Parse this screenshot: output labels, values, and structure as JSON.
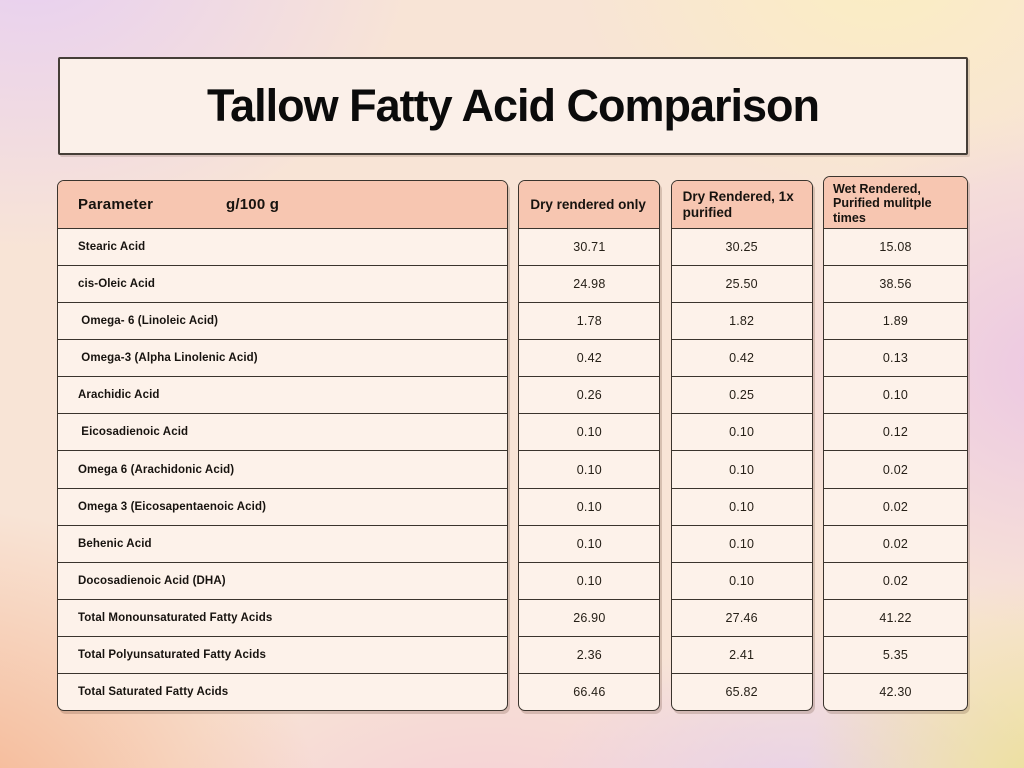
{
  "title": "Tallow Fatty Acid Comparison",
  "colors": {
    "header_fill": "#f7c6b1",
    "panel_fill": "#fdf2ea",
    "panel_border": "#3b342d",
    "title_text": "#0b0b0b",
    "bg_lavender": "#e7cff2",
    "bg_yellow": "#fbeec2",
    "bg_pink": "#f4ccd6",
    "bg_orange": "#f5b28c"
  },
  "table": {
    "param_header": "Parameter",
    "unit_header": "g/100 g",
    "columns": [
      "Dry rendered only",
      "Dry Rendered, 1x purified",
      "Wet Rendered, Purified mulitple times"
    ],
    "rows": [
      {
        "parameter": "Stearic Acid",
        "values": [
          "30.71",
          "30.25",
          "15.08"
        ]
      },
      {
        "parameter": "cis-Oleic Acid",
        "values": [
          "24.98",
          "25.50",
          "38.56"
        ]
      },
      {
        "parameter": " Omega- 6 (Linoleic Acid)",
        "values": [
          "1.78",
          "1.82",
          "1.89"
        ]
      },
      {
        "parameter": " Omega-3 (Alpha Linolenic Acid)",
        "values": [
          "0.42",
          "0.42",
          "0.13"
        ]
      },
      {
        "parameter": "Arachidic Acid",
        "values": [
          "0.26",
          "0.25",
          "0.10"
        ]
      },
      {
        "parameter": " Eicosadienoic Acid",
        "values": [
          "0.10",
          "0.10",
          "0.12"
        ]
      },
      {
        "parameter": "Omega 6 (Arachidonic Acid)",
        "values": [
          "0.10",
          "0.10",
          "0.02"
        ]
      },
      {
        "parameter": "Omega 3 (Eicosapentaenoic Acid)",
        "values": [
          "0.10",
          "0.10",
          "0.02"
        ]
      },
      {
        "parameter": "Behenic Acid",
        "values": [
          "0.10",
          "0.10",
          "0.02"
        ]
      },
      {
        "parameter": "Docosadienoic Acid (DHA)",
        "values": [
          "0.10",
          "0.10",
          "0.02"
        ]
      },
      {
        "parameter": "Total Monounsaturated Fatty Acids",
        "values": [
          "26.90",
          "27.46",
          "41.22"
        ]
      },
      {
        "parameter": "Total Polyunsaturated Fatty Acids",
        "values": [
          "2.36",
          "2.41",
          "5.35"
        ]
      },
      {
        "parameter": "Total Saturated Fatty Acids",
        "values": [
          "66.46",
          "65.82",
          "42.30"
        ]
      }
    ]
  },
  "chart_data": {
    "type": "table",
    "title": "Tallow Fatty Acid Comparison",
    "row_header": "Parameter (g/100 g)",
    "columns": [
      "Dry rendered only",
      "Dry Rendered, 1x purified",
      "Wet Rendered, Purified mulitple times"
    ],
    "categories": [
      "Stearic Acid",
      "cis-Oleic Acid",
      "Omega- 6 (Linoleic Acid)",
      "Omega-3 (Alpha Linolenic Acid)",
      "Arachidic Acid",
      "Eicosadienoic Acid",
      "Omega 6 (Arachidonic Acid)",
      "Omega 3 (Eicosapentaenoic Acid)",
      "Behenic Acid",
      "Docosadienoic Acid (DHA)",
      "Total Monounsaturated Fatty Acids",
      "Total Polyunsaturated Fatty Acids",
      "Total Saturated Fatty Acids"
    ],
    "series": [
      {
        "name": "Dry rendered only",
        "values": [
          30.71,
          24.98,
          1.78,
          0.42,
          0.26,
          0.1,
          0.1,
          0.1,
          0.1,
          0.1,
          26.9,
          2.36,
          66.46
        ]
      },
      {
        "name": "Dry Rendered, 1x purified",
        "values": [
          30.25,
          25.5,
          1.82,
          0.42,
          0.25,
          0.1,
          0.1,
          0.1,
          0.1,
          0.1,
          27.46,
          2.41,
          65.82
        ]
      },
      {
        "name": "Wet Rendered, Purified mulitple times",
        "values": [
          15.08,
          38.56,
          1.89,
          0.13,
          0.1,
          0.12,
          0.02,
          0.02,
          0.02,
          0.02,
          41.22,
          5.35,
          42.3
        ]
      }
    ]
  }
}
